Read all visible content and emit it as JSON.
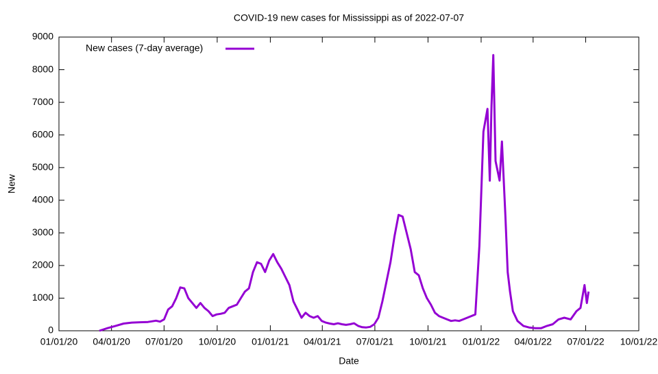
{
  "chart_data": {
    "type": "line",
    "title": "COVID-19 new cases for Mississippi as of 2022-07-07",
    "x_label": "Date",
    "y_label": "New",
    "x": [
      "03/11/20",
      "03/25/20",
      "04/08/20",
      "04/22/20",
      "05/06/20",
      "05/20/20",
      "06/03/20",
      "06/17/20",
      "06/24/20",
      "07/01/20",
      "07/08/20",
      "07/15/20",
      "07/22/20",
      "07/29/20",
      "08/05/20",
      "08/12/20",
      "08/19/20",
      "08/26/20",
      "09/02/20",
      "09/09/20",
      "09/16/20",
      "09/23/20",
      "09/30/20",
      "10/07/20",
      "10/14/20",
      "10/21/20",
      "10/28/20",
      "11/04/20",
      "11/11/20",
      "11/18/20",
      "11/25/20",
      "12/02/20",
      "12/09/20",
      "12/16/20",
      "12/23/20",
      "12/30/20",
      "01/06/21",
      "01/13/21",
      "01/20/21",
      "01/27/21",
      "02/03/21",
      "02/10/21",
      "02/17/21",
      "02/24/21",
      "03/03/21",
      "03/10/21",
      "03/17/21",
      "03/24/21",
      "03/31/21",
      "04/07/21",
      "04/14/21",
      "04/21/21",
      "04/28/21",
      "05/05/21",
      "05/12/21",
      "05/19/21",
      "05/26/21",
      "06/02/21",
      "06/09/21",
      "06/16/21",
      "06/23/21",
      "06/30/21",
      "07/07/21",
      "07/14/21",
      "07/21/21",
      "07/28/21",
      "08/04/21",
      "08/11/21",
      "08/18/21",
      "08/25/21",
      "09/01/21",
      "09/08/21",
      "09/15/21",
      "09/22/21",
      "09/29/21",
      "10/06/21",
      "10/13/21",
      "10/20/21",
      "10/27/21",
      "11/03/21",
      "11/10/21",
      "11/17/21",
      "11/24/21",
      "12/01/21",
      "12/08/21",
      "12/15/21",
      "12/22/21",
      "12/29/21",
      "01/05/22",
      "01/12/22",
      "01/16/22",
      "01/19/22",
      "01/22/22",
      "01/26/22",
      "02/02/22",
      "02/06/22",
      "02/12/22",
      "02/16/22",
      "02/20/22",
      "02/25/22",
      "03/05/22",
      "03/15/22",
      "03/25/22",
      "04/05/22",
      "04/15/22",
      "04/25/22",
      "05/05/22",
      "05/15/22",
      "05/25/22",
      "06/05/22",
      "06/15/22",
      "06/22/22",
      "06/29/22",
      "07/03/22",
      "07/06/22"
    ],
    "series": [
      {
        "name": "New cases (7-day average)",
        "color": "#9400d3",
        "values": [
          0,
          80,
          150,
          220,
          250,
          260,
          270,
          310,
          280,
          350,
          650,
          750,
          1000,
          1330,
          1300,
          1000,
          850,
          700,
          850,
          700,
          600,
          450,
          500,
          520,
          550,
          700,
          750,
          800,
          1000,
          1200,
          1300,
          1800,
          2100,
          2050,
          1800,
          2150,
          2350,
          2100,
          1900,
          1650,
          1400,
          900,
          650,
          400,
          550,
          450,
          400,
          450,
          300,
          250,
          220,
          200,
          230,
          200,
          180,
          200,
          230,
          150,
          110,
          100,
          120,
          200,
          400,
          900,
          1500,
          2100,
          2900,
          3550,
          3500,
          3000,
          2500,
          1800,
          1700,
          1300,
          1000,
          800,
          550,
          450,
          400,
          350,
          300,
          320,
          300,
          350,
          400,
          450,
          500,
          2600,
          6100,
          6800,
          4600,
          6900,
          8450,
          5200,
          4600,
          5800,
          3500,
          1800,
          1200,
          600,
          300,
          150,
          100,
          80,
          80,
          150,
          200,
          350,
          400,
          350,
          600,
          700,
          1400,
          850,
          1200
        ]
      }
    ],
    "xlim": [
      "01/01/20",
      "10/01/22"
    ],
    "xticks": [
      "01/01/20",
      "04/01/20",
      "07/01/20",
      "10/01/20",
      "01/01/21",
      "04/01/21",
      "07/01/21",
      "10/01/21",
      "01/01/22",
      "04/01/22",
      "07/01/22",
      "10/01/22"
    ],
    "ylim": [
      0,
      9000
    ],
    "yticks": [
      0,
      1000,
      2000,
      3000,
      4000,
      5000,
      6000,
      7000,
      8000,
      9000
    ],
    "legend": "top-left"
  }
}
